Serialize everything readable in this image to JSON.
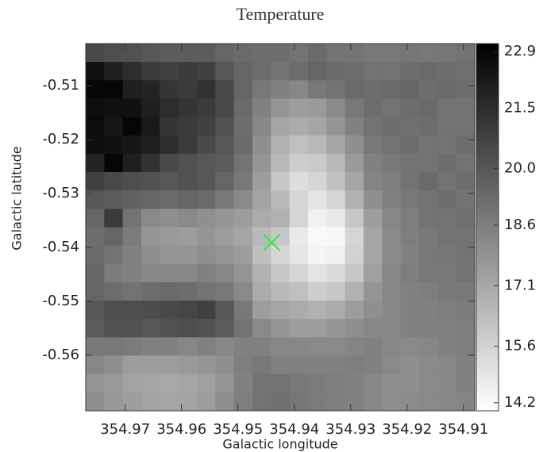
{
  "chart_data": {
    "type": "heatmap",
    "title": "Temperature",
    "x_label": "Galactic longitude",
    "y_label": "Galactic latitude",
    "xlim": [
      354.977,
      354.908
    ],
    "ylim": [
      -0.5703,
      -0.5022
    ],
    "xticks": [
      354.97,
      354.96,
      354.95,
      354.94,
      354.93,
      354.92,
      354.91
    ],
    "yticks": [
      -0.51,
      -0.52,
      -0.53,
      -0.54,
      -0.55,
      -0.56
    ],
    "zlim": [
      14.0,
      23.1
    ],
    "cticks": [
      22.9,
      21.5,
      {
        "value": 20,
        "label": "20.0"
      },
      18.6,
      17.1,
      15.6,
      14.2
    ],
    "marker": {
      "x": 354.944,
      "y": -0.5391,
      "color": "#33ee33"
    },
    "z": [
      [
        20.5,
        20.3,
        20.2,
        20.0,
        19.8,
        19.8,
        19.8,
        19.5,
        19.3,
        19.2,
        19.2,
        19.0,
        19.3,
        19.0,
        19.0,
        18.8,
        18.8,
        18.9,
        18.8,
        18.9,
        19.0
      ],
      [
        22.5,
        22.0,
        21.5,
        21.0,
        20.8,
        21.0,
        20.8,
        20.0,
        19.5,
        19.2,
        19.0,
        19.2,
        19.5,
        19.3,
        19.2,
        19.0,
        19.0,
        19.2,
        19.3,
        19.2,
        19.1
      ],
      [
        22.8,
        22.9,
        22.0,
        21.8,
        21.2,
        21.0,
        21.3,
        20.5,
        19.5,
        18.8,
        18.5,
        18.3,
        18.8,
        19.0,
        19.3,
        19.2,
        19.3,
        19.5,
        19.2,
        19.3,
        19.2
      ],
      [
        22.6,
        22.5,
        22.5,
        22.0,
        21.5,
        21.2,
        21.0,
        20.5,
        19.3,
        18.5,
        17.8,
        17.5,
        17.6,
        18.2,
        18.8,
        19.2,
        19.0,
        19.2,
        19.3,
        19.0,
        19.0
      ],
      [
        22.7,
        22.3,
        22.9,
        22.2,
        21.2,
        21.0,
        20.8,
        20.2,
        19.2,
        18.3,
        17.2,
        17.0,
        17.2,
        17.8,
        18.5,
        19.0,
        19.2,
        19.1,
        19.2,
        19.0,
        19.0
      ],
      [
        22.6,
        22.5,
        22.3,
        22.0,
        21.5,
        21.0,
        20.5,
        20.0,
        19.3,
        18.0,
        16.8,
        16.3,
        16.5,
        17.2,
        18.0,
        18.8,
        19.0,
        19.2,
        19.0,
        19.0,
        19.2
      ],
      [
        21.8,
        22.9,
        22.0,
        21.3,
        20.5,
        20.2,
        20.0,
        19.8,
        19.0,
        17.8,
        16.5,
        15.8,
        15.9,
        16.5,
        17.6,
        18.5,
        18.8,
        19.0,
        19.0,
        19.2,
        19.0
      ],
      [
        20.8,
        20.5,
        20.3,
        20.2,
        20.0,
        20.2,
        20.0,
        19.5,
        18.8,
        17.5,
        16.0,
        15.2,
        15.5,
        16.2,
        17.2,
        18.4,
        18.6,
        19.0,
        19.3,
        19.0,
        19.2
      ],
      [
        20.0,
        19.8,
        19.6,
        19.5,
        19.3,
        19.5,
        19.3,
        18.8,
        18.2,
        17.3,
        16.5,
        15.5,
        15.0,
        15.5,
        16.8,
        18.0,
        18.5,
        18.8,
        19.0,
        19.2,
        19.0
      ],
      [
        19.5,
        21.0,
        19.0,
        18.2,
        18.0,
        18.2,
        18.0,
        17.8,
        17.5,
        17.0,
        16.8,
        15.5,
        14.5,
        14.8,
        16.0,
        17.5,
        18.3,
        18.6,
        19.0,
        19.0,
        19.1
      ],
      [
        19.2,
        19.5,
        18.7,
        17.8,
        17.6,
        17.5,
        17.8,
        17.5,
        17.2,
        16.5,
        16.0,
        14.8,
        14.2,
        14.3,
        15.5,
        17.2,
        18.2,
        18.6,
        18.8,
        19.0,
        19.0
      ],
      [
        19.3,
        19.0,
        18.5,
        18.0,
        17.8,
        17.8,
        18.0,
        17.8,
        17.5,
        16.3,
        15.5,
        14.9,
        14.4,
        14.5,
        15.6,
        17.2,
        18.2,
        18.5,
        18.8,
        18.9,
        19.0
      ],
      [
        19.5,
        18.7,
        18.5,
        18.3,
        18.3,
        18.3,
        18.5,
        18.3,
        17.8,
        16.8,
        16.0,
        15.5,
        15.0,
        15.3,
        16.0,
        17.4,
        18.3,
        18.6,
        18.8,
        18.8,
        19.0
      ],
      [
        19.5,
        19.2,
        19.0,
        19.2,
        19.3,
        19.2,
        19.0,
        18.8,
        18.2,
        17.0,
        16.5,
        16.3,
        15.8,
        16.0,
        16.8,
        17.8,
        18.3,
        18.5,
        18.6,
        18.8,
        18.8
      ],
      [
        20.0,
        20.3,
        20.3,
        20.4,
        20.5,
        20.6,
        20.8,
        20.0,
        18.8,
        17.5,
        17.2,
        17.0,
        16.8,
        17.0,
        17.5,
        18.0,
        18.3,
        18.5,
        18.5,
        18.6,
        18.7
      ],
      [
        19.8,
        20.2,
        20.2,
        20.0,
        20.2,
        20.3,
        20.2,
        19.8,
        19.0,
        18.2,
        17.8,
        17.5,
        17.5,
        17.8,
        18.0,
        18.3,
        18.3,
        18.5,
        18.5,
        18.5,
        18.6
      ],
      [
        18.8,
        18.8,
        18.7,
        18.5,
        18.5,
        18.3,
        18.5,
        18.3,
        18.5,
        18.5,
        18.3,
        18.3,
        18.2,
        18.2,
        18.4,
        18.5,
        18.3,
        18.2,
        18.3,
        18.5,
        18.6
      ],
      [
        18.3,
        18.0,
        17.5,
        17.5,
        17.5,
        17.6,
        17.8,
        18.0,
        18.6,
        18.8,
        18.5,
        18.5,
        18.5,
        18.5,
        18.6,
        18.5,
        18.2,
        18.0,
        18.2,
        18.3,
        18.5
      ],
      [
        17.8,
        17.6,
        17.3,
        17.2,
        17.1,
        17.2,
        17.4,
        17.8,
        18.5,
        19.0,
        19.0,
        18.8,
        18.7,
        18.6,
        18.5,
        18.3,
        18.0,
        18.0,
        18.2,
        18.3,
        18.5
      ],
      [
        18.0,
        17.7,
        17.5,
        17.3,
        17.2,
        17.3,
        17.5,
        18.0,
        18.6,
        19.0,
        19.1,
        18.9,
        18.7,
        18.6,
        18.5,
        18.3,
        18.0,
        18.1,
        18.2,
        18.3,
        18.4
      ]
    ]
  }
}
